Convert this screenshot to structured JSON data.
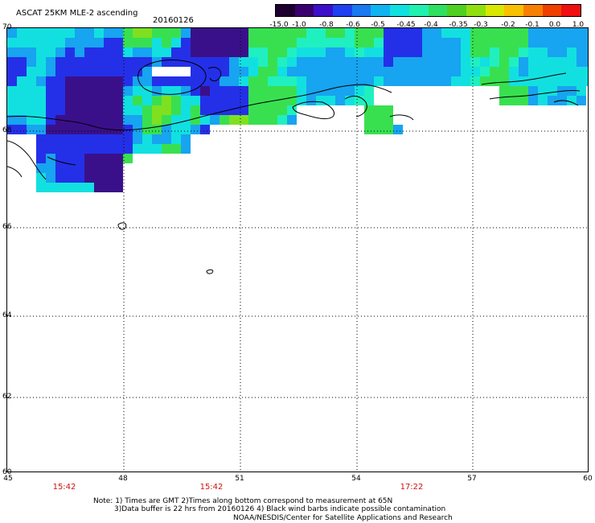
{
  "header": {
    "title": "ASCAT 25KM MLE-2 ascending",
    "date": "20160126"
  },
  "colorbar": {
    "labels": [
      "-15.0",
      "-1.0",
      "-0.8",
      "-0.6",
      "-0.5",
      "-0.45",
      "-0.4",
      "-0.35",
      "-0.3",
      "-0.2",
      "-0.1",
      "0.0",
      "1.0"
    ],
    "colors": [
      "#1c0030",
      "#3a006e",
      "#3c10c8",
      "#1e40f0",
      "#1a78f0",
      "#10b4f0",
      "#10e0e0",
      "#20f0b0",
      "#30e060",
      "#50d020",
      "#90e010",
      "#d8e800",
      "#f8c000",
      "#f88000",
      "#f04000",
      "#f01010"
    ]
  },
  "map": {
    "lat_labels": [
      "70",
      "68",
      "66",
      "64",
      "62",
      "60"
    ],
    "lon_labels": [
      "45",
      "48",
      "51",
      "54",
      "57",
      "60"
    ],
    "times": [
      "15:42",
      "15:42",
      "17:22"
    ]
  },
  "notes": {
    "line1": "Note: 1) Times are GMT 2)Times along bottom correspond to measurement at 65N",
    "line2": "3)Data buffer is 22 hrs from 20160126 4) Black wind barbs indicate possible contamination",
    "line3": "NOAA/NESDIS/Center for Satellite Applications and Research"
  }
}
